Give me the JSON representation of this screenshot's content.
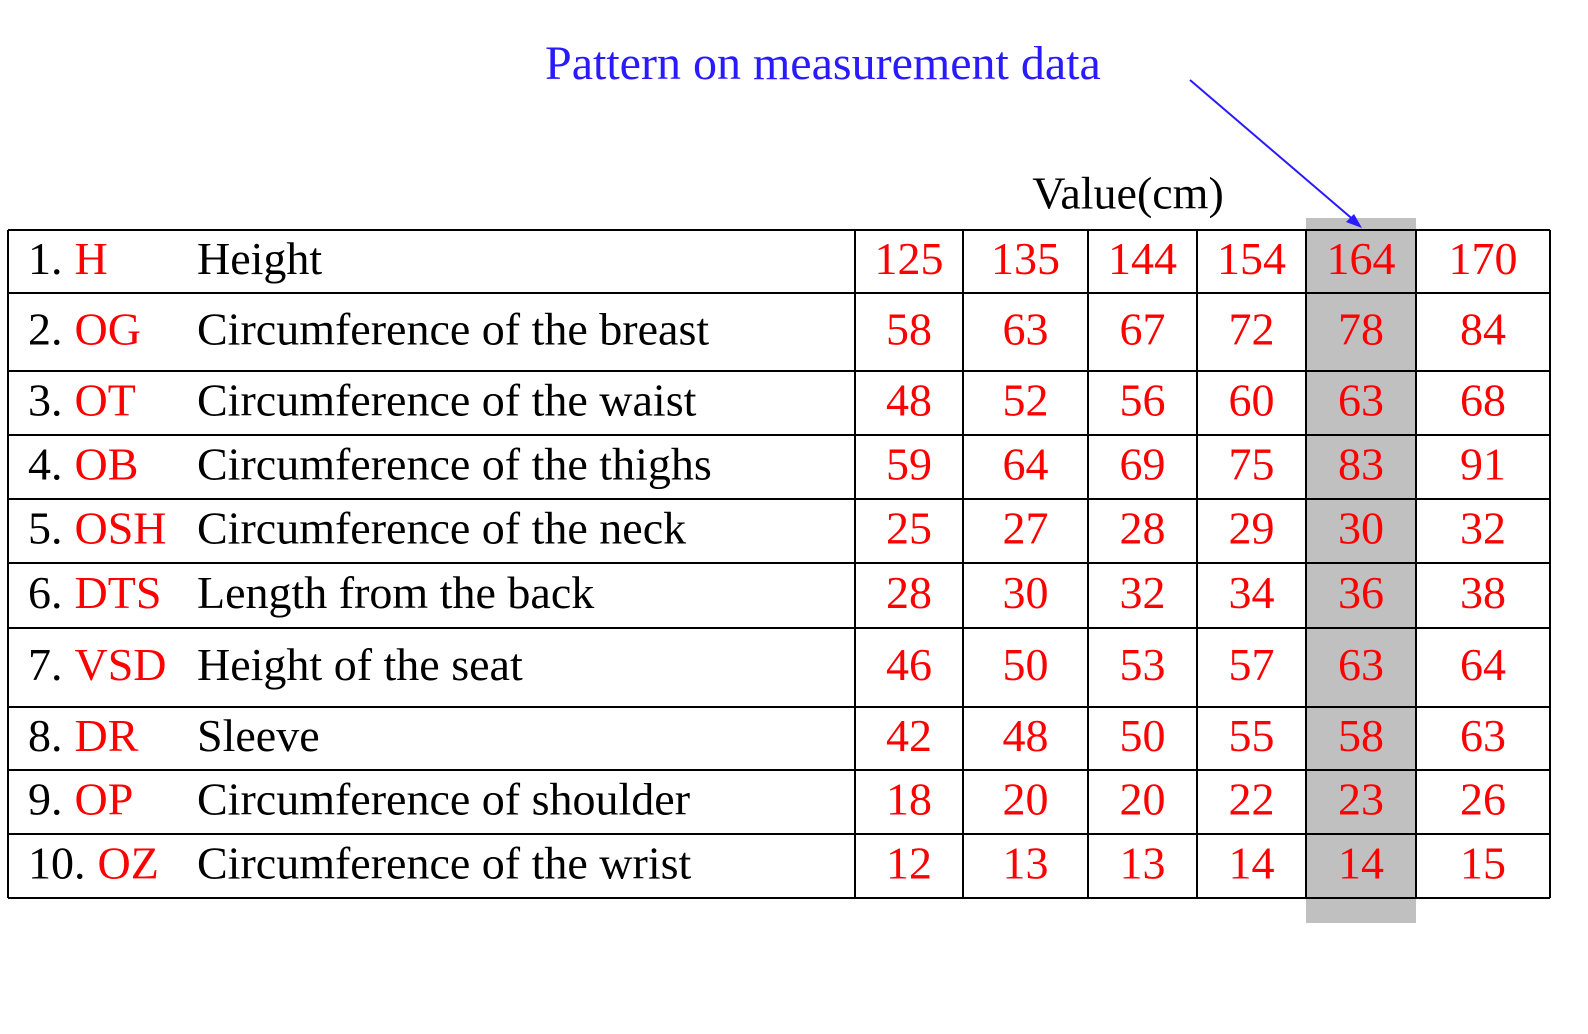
{
  "annotation": "Pattern on measurement data",
  "header": "Value(cm)",
  "rows": [
    {
      "number": "1.",
      "code": "H",
      "name": "Height",
      "values": [
        125,
        135,
        144,
        154,
        164,
        170
      ]
    },
    {
      "number": "2.",
      "code": "OG",
      "name": "Circumference of the breast",
      "values": [
        58,
        63,
        67,
        72,
        78,
        84
      ]
    },
    {
      "number": "3.",
      "code": "OT",
      "name": "Circumference of the waist",
      "values": [
        48,
        52,
        56,
        60,
        63,
        68
      ]
    },
    {
      "number": "4.",
      "code": "OB",
      "name": "Circumference of the thighs",
      "values": [
        59,
        64,
        69,
        75,
        83,
        91
      ]
    },
    {
      "number": "5.",
      "code": "OSH",
      "name": "Circumference of the neck",
      "values": [
        25,
        27,
        28,
        29,
        30,
        32
      ]
    },
    {
      "number": "6.",
      "code": "DTS",
      "name": "Length from the back",
      "values": [
        28,
        30,
        32,
        34,
        36,
        38
      ]
    },
    {
      "number": "7.",
      "code": "VSD",
      "name": "Height of the seat",
      "values": [
        46,
        50,
        53,
        57,
        63,
        64
      ]
    },
    {
      "number": "8.",
      "code": "DR",
      "name": "Sleeve",
      "values": [
        42,
        48,
        50,
        55,
        58,
        63
      ]
    },
    {
      "number": "9.",
      "code": "OP",
      "name": "Circumference of shoulder",
      "values": [
        18,
        20,
        20,
        22,
        23,
        26
      ]
    },
    {
      "number": "10.",
      "code": "OZ",
      "name": "Circumference of the wrist",
      "values": [
        12,
        13,
        13,
        14,
        14,
        15
      ]
    }
  ]
}
